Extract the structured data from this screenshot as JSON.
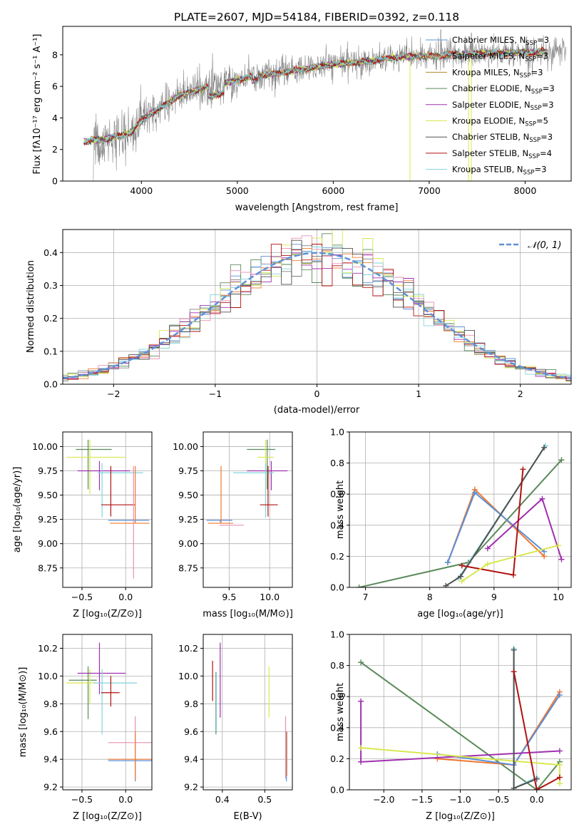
{
  "figure_title": "PLATE=2607, MJD=54184, FIBERID=0392, z=0.118",
  "colors": {
    "gray": "#808080",
    "orange": "#f07830",
    "blue": "#5b8fd6",
    "cyan": "#82d4dc",
    "green": "#5a8a5a",
    "purple": "#a030b0",
    "yellow": "#d8e84e",
    "pink": "#e890b4",
    "red": "#b01010",
    "dark": "#505050",
    "brown": "#b08a30",
    "dashed": "#6090d8",
    "grid": "#b0b0b0"
  },
  "chart_data": [
    {
      "id": "spectrum",
      "type": "line",
      "title": "PLATE=2607, MJD=54184, FIBERID=0392, z=0.118",
      "xlabel": "wavelength [Angstrom, rest frame]",
      "ylabel": "Flux [f_λ 10^-17 erg cm^-2 s^-1 A^-1]",
      "xlim": [
        3180,
        8480
      ],
      "ylim": [
        0,
        9.8
      ],
      "xticks": [
        "4000",
        "5000",
        "6000",
        "7000",
        "8000"
      ],
      "yticks": [
        "0",
        "2",
        "4",
        "6",
        "8"
      ],
      "grid": false,
      "legend_position": "top-right",
      "legend": [
        {
          "text": "Chabrier MILES, N_SSP=3",
          "color": "#5b8fd6"
        },
        {
          "text": "Salpeter MILES, N_SSP=3",
          "color": "#f07830"
        },
        {
          "text": "Kroupa MILES, N_SSP=3",
          "color": "#b08a30"
        },
        {
          "text": "Chabrier ELODIE, N_SSP=3",
          "color": "#5a8a5a"
        },
        {
          "text": "Salpeter ELODIE, N_SSP=3",
          "color": "#a030b0"
        },
        {
          "text": "Kroupa ELODIE, N_SSP=5",
          "color": "#d8e84e"
        },
        {
          "text": "Chabrier STELIB, N_SSP=3",
          "color": "#505050"
        },
        {
          "text": "Salpeter STELIB, N_SSP=4",
          "color": "#b01010"
        },
        {
          "text": "Kroupa STELIB, N_SSP=3",
          "color": "#82d4dc"
        }
      ],
      "continuum_x": [
        3400,
        3500,
        3600,
        3700,
        3800,
        3900,
        4000,
        4100,
        4200,
        4300,
        4400,
        4600,
        4800,
        5000,
        5200,
        5400,
        5600,
        5800,
        6000,
        6200,
        6400,
        6600,
        6800,
        7000,
        7200,
        7400,
        7600,
        7800,
        8000,
        8240
      ],
      "continuum_y": [
        2.5,
        2.6,
        2.6,
        2.8,
        2.9,
        3.1,
        3.8,
        4.3,
        4.6,
        5.1,
        5.4,
        5.8,
        6.1,
        6.4,
        6.7,
        6.8,
        7.0,
        7.2,
        7.4,
        7.5,
        7.6,
        7.8,
        7.9,
        7.9,
        8.0,
        8.05,
        8.1,
        8.1,
        8.15,
        8.2
      ]
    },
    {
      "id": "residuals",
      "type": "histogram",
      "xlabel": "(data-model)/error",
      "ylabel": "Normed distribution",
      "xlim": [
        -2.5,
        2.5
      ],
      "ylim": [
        0,
        0.47
      ],
      "xticks": [
        "-2",
        "-1",
        "0",
        "1",
        "2"
      ],
      "yticks": [
        "0.0",
        "0.1",
        "0.2",
        "0.3",
        "0.4"
      ],
      "grid": true,
      "legend_position": "top-right",
      "legend": [
        {
          "text": "𝒩(0, 1)",
          "style": "dashed"
        }
      ],
      "bin_width": 0.1,
      "reference_curve": "normal(0,1)"
    },
    {
      "id": "age_vs_Z",
      "type": "errorbar",
      "xlabel": "Z [log10(Z/Z⊙)]",
      "ylabel": "age [log10(age/yr)]",
      "xlim": [
        -0.72,
        0.3
      ],
      "ylim": [
        8.55,
        10.15
      ],
      "xticks": [
        "-0.5",
        "0.0"
      ],
      "yticks": [
        "8.75",
        "9.00",
        "9.25",
        "9.50",
        "9.75",
        "10.00"
      ],
      "grid": true,
      "points": [
        {
          "color": "#5a8a5a",
          "x": -0.43,
          "xerr": [
            0.14,
            0.27
          ],
          "y": 9.97,
          "yerr": [
            0.41,
            0.1
          ]
        },
        {
          "color": "#d8e84e",
          "x": -0.41,
          "xerr": [
            0.27,
            0.41
          ],
          "y": 9.89,
          "yerr": [
            0.38,
            0.18
          ]
        },
        {
          "color": "#a030b0",
          "x": -0.3,
          "xerr": [
            0.25,
            0.35
          ],
          "y": 9.75,
          "yerr": [
            0.2,
            0.1
          ]
        },
        {
          "color": "#82d4dc",
          "x": -0.27,
          "xerr": [
            0.05,
            0.47
          ],
          "y": 9.73,
          "yerr": [
            0.46,
            0.1
          ]
        },
        {
          "color": "#b01010",
          "x": -0.17,
          "xerr": [
            0.11,
            0.28
          ],
          "y": 9.4,
          "yerr": [
            0.12,
            0.4
          ]
        },
        {
          "color": "#5b8fd6",
          "x": 0.11,
          "xerr": [
            0.31,
            0.16
          ],
          "y": 9.24,
          "yerr": [
            0.02,
            0.0
          ]
        },
        {
          "color": "#f07830",
          "x": 0.11,
          "xerr": [
            0.29,
            0.16
          ],
          "y": 9.21,
          "yerr": [
            0.0,
            0.59
          ]
        },
        {
          "color": "#e890b4",
          "x": 0.09,
          "xerr": [
            0.0,
            0.0
          ],
          "y": 9.3,
          "yerr": [
            0.66,
            0.5
          ]
        }
      ]
    },
    {
      "id": "age_vs_mass",
      "type": "errorbar",
      "xlabel": "mass [log10(M/M⊙)]",
      "ylabel": "",
      "xlim": [
        9.18,
        10.28
      ],
      "ylim": [
        8.55,
        10.15
      ],
      "xticks": [
        "9.5",
        "10.0"
      ],
      "yticks": [
        "8.75",
        "9.00",
        "9.25",
        "9.50",
        "9.75",
        "10.00"
      ],
      "grid": true,
      "points": [
        {
          "color": "#5a8a5a",
          "x": 9.97,
          "xerr": [
            0.25,
            0.1
          ],
          "y": 9.97,
          "yerr": [
            0.41,
            0.1
          ]
        },
        {
          "color": "#d8e84e",
          "x": 9.95,
          "xerr": [
            0.1,
            0.1
          ],
          "y": 9.89,
          "yerr": [
            0.38,
            0.18
          ]
        },
        {
          "color": "#a030b0",
          "x": 10.02,
          "xerr": [
            0.3,
            0.2
          ],
          "y": 9.75,
          "yerr": [
            0.2,
            0.1
          ]
        },
        {
          "color": "#82d4dc",
          "x": 9.95,
          "xerr": [
            0.4,
            0.1
          ],
          "y": 9.73,
          "yerr": [
            0.46,
            0.1
          ]
        },
        {
          "color": "#b01010",
          "x": 9.98,
          "xerr": [
            0.1,
            0.12
          ],
          "y": 9.4,
          "yerr": [
            0.12,
            0.4
          ]
        },
        {
          "color": "#5b8fd6",
          "x": 9.39,
          "xerr": [
            0.17,
            0.15
          ],
          "y": 9.24,
          "yerr": [
            0.02,
            0.0
          ]
        },
        {
          "color": "#f07830",
          "x": 9.4,
          "xerr": [
            0.16,
            0.15
          ],
          "y": 9.21,
          "yerr": [
            0.0,
            0.59
          ]
        },
        {
          "color": "#e890b4",
          "x": 9.52,
          "xerr": [
            0.14,
            0.16
          ],
          "y": 9.19,
          "yerr": [
            0.0,
            0.0
          ]
        }
      ]
    },
    {
      "id": "weight_vs_age",
      "type": "line",
      "xlabel": "age [log10(age/yr)]",
      "ylabel": "mass weight",
      "xlim": [
        6.75,
        10.2
      ],
      "ylim": [
        0,
        1.0
      ],
      "xticks": [
        "7",
        "8",
        "9",
        "10"
      ],
      "yticks": [
        "0.0",
        "0.2",
        "0.4",
        "0.6",
        "0.8",
        "1.0"
      ],
      "grid": true,
      "series": [
        {
          "color": "#5a8a5a",
          "x": [
            6.9,
            8.6,
            10.05
          ],
          "y": [
            0.0,
            0.16,
            0.82
          ]
        },
        {
          "color": "#f07830",
          "x": [
            8.28,
            8.7,
            9.78
          ],
          "y": [
            0.16,
            0.63,
            0.2
          ]
        },
        {
          "color": "#5b8fd6",
          "x": [
            8.28,
            8.7,
            9.78
          ],
          "y": [
            0.16,
            0.61,
            0.23
          ]
        },
        {
          "color": "#82d4dc",
          "x": [
            8.25,
            8.45,
            9.8
          ],
          "y": [
            0.01,
            0.06,
            0.91
          ]
        },
        {
          "color": "#505050",
          "x": [
            8.25,
            8.48,
            9.78
          ],
          "y": [
            0.01,
            0.07,
            0.9
          ]
        },
        {
          "color": "#a030b0",
          "x": [
            8.9,
            9.75,
            10.05
          ],
          "y": [
            0.25,
            0.57,
            0.18
          ]
        },
        {
          "color": "#b01010",
          "x": [
            8.5,
            9.3,
            9.45
          ],
          "y": [
            0.14,
            0.08,
            0.76
          ]
        },
        {
          "color": "#d8e84e",
          "x": [
            8.5,
            8.9,
            10.0
          ],
          "y": [
            0.04,
            0.15,
            0.27
          ]
        }
      ]
    },
    {
      "id": "mass_vs_Z",
      "type": "errorbar",
      "xlabel": "Z [log10(Z/Z⊙)]",
      "ylabel": "mass [log10(M/M⊙)]",
      "xlim": [
        -0.72,
        0.3
      ],
      "ylim": [
        9.18,
        10.3
      ],
      "xticks": [
        "-0.5",
        "0.0"
      ],
      "yticks": [
        "9.2",
        "9.4",
        "9.6",
        "9.8",
        "10.0",
        "10.2"
      ],
      "grid": true,
      "points": [
        {
          "color": "#5a8a5a",
          "x": -0.43,
          "xerr": [
            0.22,
            0.1
          ],
          "y": 9.97,
          "yerr": [
            0.28,
            0.1
          ]
        },
        {
          "color": "#d8e84e",
          "x": -0.41,
          "xerr": [
            0.27,
            0.1
          ],
          "y": 9.95,
          "yerr": [
            0.15,
            0.1
          ]
        },
        {
          "color": "#a030b0",
          "x": -0.3,
          "xerr": [
            0.25,
            0.3
          ],
          "y": 10.02,
          "yerr": [
            0.15,
            0.22
          ]
        },
        {
          "color": "#82d4dc",
          "x": -0.27,
          "xerr": [
            0.1,
            0.4
          ],
          "y": 9.95,
          "yerr": [
            0.37,
            0.1
          ]
        },
        {
          "color": "#b01010",
          "x": -0.17,
          "xerr": [
            0.11,
            0.1
          ],
          "y": 9.88,
          "yerr": [
            0.1,
            0.12
          ]
        },
        {
          "color": "#e890b4",
          "x": 0.11,
          "xerr": [
            0.31,
            0.2
          ],
          "y": 9.52,
          "yerr": [
            0.17,
            0.19
          ]
        },
        {
          "color": "#5b8fd6",
          "x": 0.11,
          "xerr": [
            0.31,
            0.2
          ],
          "y": 9.39,
          "yerr": [
            0.15,
            0.0
          ]
        },
        {
          "color": "#f07830",
          "x": 0.11,
          "xerr": [
            0.31,
            0.2
          ],
          "y": 9.4,
          "yerr": [
            0.15,
            0.2
          ]
        }
      ]
    },
    {
      "id": "mass_vs_EBV",
      "type": "errorbar",
      "xlabel": "E(B-V)",
      "ylabel": "",
      "xlim": [
        0.355,
        0.565
      ],
      "ylim": [
        9.18,
        10.3
      ],
      "xticks": [
        "0.4",
        "0.5"
      ],
      "yticks": [
        "9.2",
        "9.4",
        "9.6",
        "9.8",
        "10.0",
        "10.2"
      ],
      "grid": true,
      "points": [
        {
          "color": "#b01010",
          "x": 0.377,
          "xerr": [
            0,
            0
          ],
          "y": 9.97,
          "yerr": [
            0.15,
            0.14
          ]
        },
        {
          "color": "#5a8a5a",
          "x": 0.385,
          "xerr": [
            0,
            0
          ],
          "y": 9.8,
          "yerr": [
            0.22,
            0.23
          ]
        },
        {
          "color": "#82d4dc",
          "x": 0.386,
          "xerr": [
            0,
            0
          ],
          "y": 9.8,
          "yerr": [
            0.2,
            0.22
          ]
        },
        {
          "color": "#a030b0",
          "x": 0.395,
          "xerr": [
            0,
            0
          ],
          "y": 10.0,
          "yerr": [
            0.3,
            0.24
          ]
        },
        {
          "color": "#d8e84e",
          "x": 0.51,
          "xerr": [
            0,
            0
          ],
          "y": 9.9,
          "yerr": [
            0.2,
            0.17
          ]
        },
        {
          "color": "#e890b4",
          "x": 0.549,
          "xerr": [
            0,
            0
          ],
          "y": 9.5,
          "yerr": [
            0.24,
            0.21
          ]
        },
        {
          "color": "#5b8fd6",
          "x": 0.551,
          "xerr": [
            0,
            0
          ],
          "y": 9.4,
          "yerr": [
            0.16,
            0.2
          ]
        },
        {
          "color": "#f07830",
          "x": 0.552,
          "xerr": [
            0,
            0
          ],
          "y": 9.4,
          "yerr": [
            0.12,
            0.2
          ]
        }
      ]
    },
    {
      "id": "weight_vs_Z",
      "type": "line",
      "xlabel": "Z [log10(Z/Z⊙)]",
      "ylabel": "mass weight",
      "xlim": [
        -2.45,
        0.45
      ],
      "ylim": [
        0,
        1.0
      ],
      "xticks": [
        "-2.0",
        "-1.5",
        "-1.0",
        "-0.5",
        "0.0"
      ],
      "yticks": [
        "0.0",
        "0.2",
        "0.4",
        "0.6",
        "0.8",
        "1.0"
      ],
      "grid": true,
      "series": [
        {
          "color": "#5a8a5a",
          "x": [
            -2.3,
            0.0,
            0.3
          ],
          "y": [
            0.82,
            0.0,
            0.18
          ]
        },
        {
          "color": "#f07830",
          "x": [
            -1.3,
            -0.3,
            0.3
          ],
          "y": [
            0.2,
            0.16,
            0.63
          ]
        },
        {
          "color": "#5b8fd6",
          "x": [
            -1.3,
            -0.3,
            0.3
          ],
          "y": [
            0.23,
            0.16,
            0.61
          ]
        },
        {
          "color": "#a030b0",
          "x": [
            -2.3,
            -2.3,
            0.3
          ],
          "y": [
            0.57,
            0.18,
            0.25
          ]
        },
        {
          "color": "#d8e84e",
          "x": [
            -2.3,
            0.3,
            0.3
          ],
          "y": [
            0.27,
            0.16,
            0.04
          ]
        },
        {
          "color": "#82d4dc",
          "x": [
            -0.3,
            -0.3,
            0.0
          ],
          "y": [
            0.91,
            0.01,
            0.08
          ]
        },
        {
          "color": "#505050",
          "x": [
            -0.3,
            -0.3,
            0.0
          ],
          "y": [
            0.9,
            0.01,
            0.07
          ]
        },
        {
          "color": "#b01010",
          "x": [
            -0.3,
            0.0,
            0.3
          ],
          "y": [
            0.76,
            0.0,
            0.08
          ]
        }
      ]
    }
  ]
}
